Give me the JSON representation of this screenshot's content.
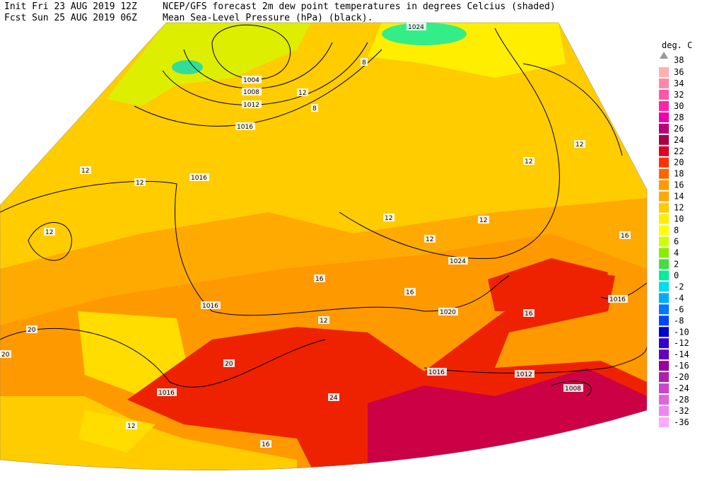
{
  "header": {
    "init": "Init  Fri 23 AUG 2019 12Z",
    "forecast": "Fcst Sun 25 AUG 2019 06Z",
    "title": "NCEP/GFS forecast 2m dew point temperatures in degrees Celcius (shaded)",
    "subtitle": "Mean Sea-Level Pressure (hPa) (black)."
  },
  "legend": {
    "title": "deg. C",
    "max_label": 38,
    "levels": [
      36,
      34,
      32,
      30,
      28,
      26,
      24,
      22,
      20,
      18,
      16,
      14,
      12,
      10,
      8,
      6,
      4,
      2,
      0,
      -2,
      -4,
      -6,
      -8,
      -10,
      -12,
      -14,
      -16,
      -20,
      -24,
      -28,
      -32,
      -36
    ],
    "colors": [
      "#ffb0b0",
      "#ff88aa",
      "#ff55aa",
      "#ff22aa",
      "#ee00aa",
      "#bb0077",
      "#aa0044",
      "#dd0022",
      "#ff3300",
      "#ff6600",
      "#ff9900",
      "#ffaa00",
      "#ffcc00",
      "#ffee00",
      "#ffff00",
      "#ccff00",
      "#88ee00",
      "#44dd44",
      "#00ee99",
      "#00ddee",
      "#00aaff",
      "#0077ff",
      "#0044ff",
      "#0000cc",
      "#3300cc",
      "#6600bb",
      "#990099",
      "#aa22aa",
      "#cc44cc",
      "#dd66dd",
      "#ee88ee",
      "#ffaaff"
    ]
  },
  "isobar_labels": [
    1024,
    1004,
    1008,
    1012,
    1016,
    1016,
    1016,
    1024,
    1020,
    1016,
    1012,
    1008,
    1016,
    1016,
    20
  ],
  "dewpoint_labels": [
    12,
    12,
    12,
    12,
    12,
    12,
    12,
    12,
    12,
    16,
    16,
    16,
    16,
    20,
    20,
    24,
    8,
    8,
    12,
    16,
    12
  ]
}
